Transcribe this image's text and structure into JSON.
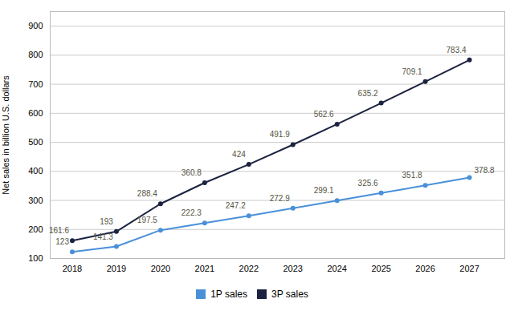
{
  "chart_data": {
    "type": "line",
    "x": [
      2018,
      2019,
      2020,
      2021,
      2022,
      2023,
      2024,
      2025,
      2026,
      2027
    ],
    "series": [
      {
        "name": "1P sales",
        "color": "#4a90d9",
        "values": [
          123,
          141.3,
          197.5,
          222.3,
          247.2,
          272.9,
          299.1,
          325.6,
          351.8,
          378.8
        ]
      },
      {
        "name": "3P sales",
        "color": "#1c2340",
        "values": [
          161.6,
          193,
          288.4,
          360.8,
          424,
          491.9,
          562.6,
          635.2,
          709.1,
          783.4
        ]
      }
    ],
    "ylabel": "Net sales in billion U.S. dollars",
    "xlim": [
      2017.5,
      2027.8
    ],
    "xticks": [
      2018,
      2019,
      2020,
      2021,
      2022,
      2023,
      2024,
      2025,
      2026,
      2027
    ],
    "ylim": [
      100,
      950
    ],
    "yticks": [
      100,
      200,
      300,
      400,
      500,
      600,
      700,
      800,
      900
    ],
    "grid": true,
    "legend": "bottom",
    "marker": "circle",
    "data_labels": true
  }
}
